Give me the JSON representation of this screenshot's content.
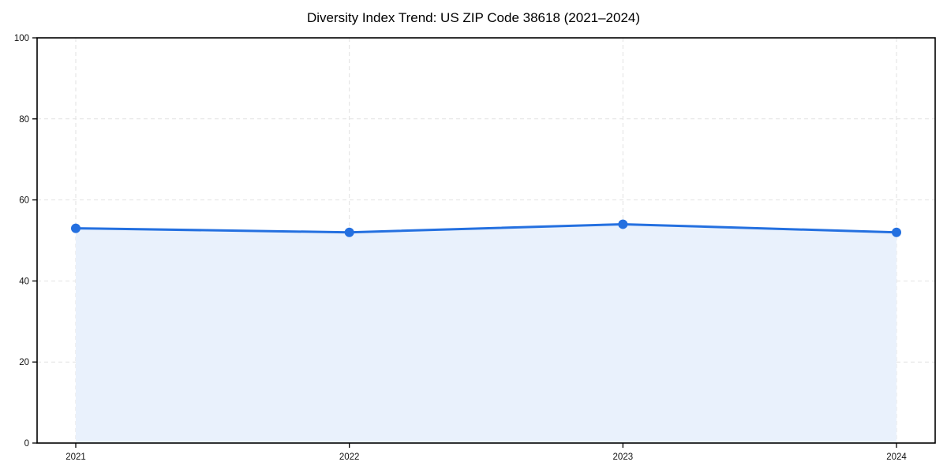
{
  "chart_data": {
    "type": "area",
    "title": "Diversity Index Trend: US ZIP Code 38618 (2021–2024)",
    "categories": [
      "2021",
      "2022",
      "2023",
      "2024"
    ],
    "values": [
      53,
      52,
      54,
      52
    ],
    "xlabel": "",
    "ylabel": "",
    "ylim": [
      0,
      100
    ],
    "yticks": [
      0,
      20,
      40,
      60,
      80,
      100
    ],
    "grid": true,
    "legend": false,
    "colors": {
      "line": "#2470e0",
      "marker": "#2470e0",
      "fill": "#e9f1fc",
      "grid": "#e2e2e2",
      "axis": "#000000",
      "tick_text": "#111111",
      "title_text": "#000000",
      "background": "#ffffff"
    }
  }
}
